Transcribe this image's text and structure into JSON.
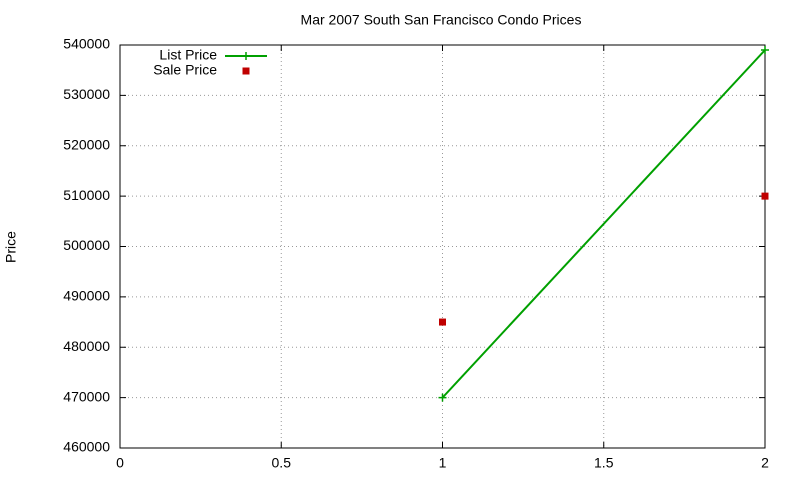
{
  "chart_data": {
    "type": "line",
    "title": "Mar 2007 South San Francisco Condo Prices",
    "y_label": "Price",
    "xlim": [
      0,
      2
    ],
    "xticks": [
      0,
      0.5,
      1,
      1.5,
      2
    ],
    "ylim": [
      460000,
      540000
    ],
    "yticks": [
      460000,
      470000,
      480000,
      490000,
      500000,
      510000,
      520000,
      530000,
      540000
    ],
    "grid": true,
    "legend": "top-left",
    "series": [
      {
        "name": "List Price",
        "color": "#00a000",
        "mode": "lines+markers",
        "marker": "plus",
        "x": [
          1,
          2
        ],
        "values": [
          470000,
          539000
        ]
      },
      {
        "name": "Sale Price",
        "color": "#c00000",
        "mode": "markers",
        "marker": "square",
        "x": [
          1,
          2
        ],
        "values": [
          485000,
          510000
        ]
      }
    ]
  }
}
